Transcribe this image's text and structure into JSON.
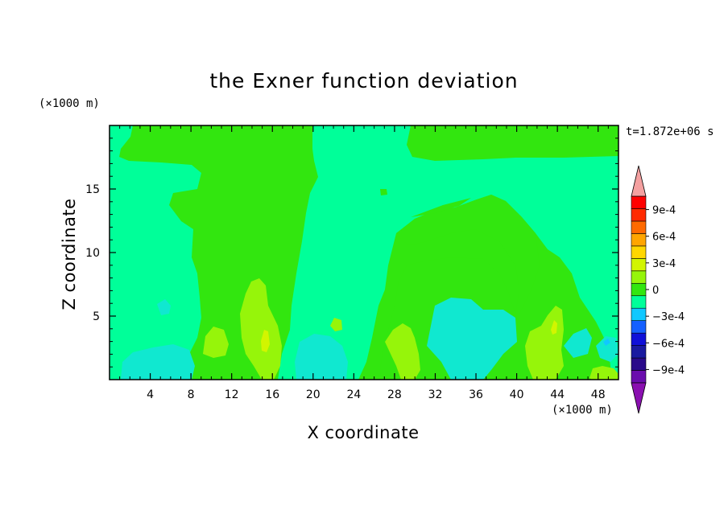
{
  "chart_data": {
    "type": "heatmap",
    "title": "the Exner function deviation",
    "xlabel": "X coordinate",
    "ylabel": "Z coordinate",
    "x_unit": "(×1000 m)",
    "y_unit": "(×1000 m)",
    "time_label": "t=1.872e+06 s",
    "xlim": [
      0,
      50
    ],
    "ylim": [
      0,
      20
    ],
    "x_ticks": [
      "4",
      "8",
      "12",
      "16",
      "20",
      "24",
      "28",
      "32",
      "36",
      "40",
      "44",
      "48"
    ],
    "y_ticks": [
      "5",
      "10",
      "15"
    ],
    "colorbar": {
      "levels": [
        -0.00105,
        -0.0009,
        -0.00075,
        -0.0006,
        -0.00045,
        -0.0003,
        -0.00015,
        0,
        0.00015,
        0.0003,
        0.00045,
        0.0006,
        0.00075,
        0.0009,
        0.00105
      ],
      "tick_labels": [
        "9e-4",
        "6e-4",
        "3e-4",
        "0",
        "−3e-4",
        "−6e-4",
        "−9e-4"
      ],
      "tick_values": [
        0.0009,
        0.0006,
        0.0003,
        0,
        -0.0003,
        -0.0006,
        -0.0009
      ],
      "colors": [
        "#6a0dad",
        "#2a0a8a",
        "#1a1aa0",
        "#1010d8",
        "#1560ff",
        "#10c8ff",
        "#00ff99",
        "#32e60f",
        "#96f50a",
        "#d2f500",
        "#ffd700",
        "#ffa500",
        "#ff6a00",
        "#ff2a00",
        "#ff0000"
      ],
      "under_color": "#8a10b0",
      "over_color": "#f4a0a0"
    },
    "regions": [
      {
        "value": 0.0,
        "label": "0 to 1.5e-4",
        "description": "broad green band dominant across domain"
      },
      {
        "value": -0.0001,
        "label": "-1.5e-4 to 0",
        "description": "cyan-green regions upper layer and left/right columns"
      },
      {
        "value": -0.0002,
        "label": "-3e-4 to -1.5e-4",
        "description": "cyan pockets near surface at x=2-8 km, 18-24 km, 32-38 km"
      },
      {
        "value": 0.0002,
        "label": "1.5e-4 to 3e-4",
        "description": "yellow-green plumes near x=9-12, 14-16, 28-30, 40-46 km low levels"
      },
      {
        "value": 0.00035,
        "label": "3e-4 to 4.5e-4",
        "description": "small yellow cores near x=15 km and x=43.5 km"
      }
    ]
  }
}
